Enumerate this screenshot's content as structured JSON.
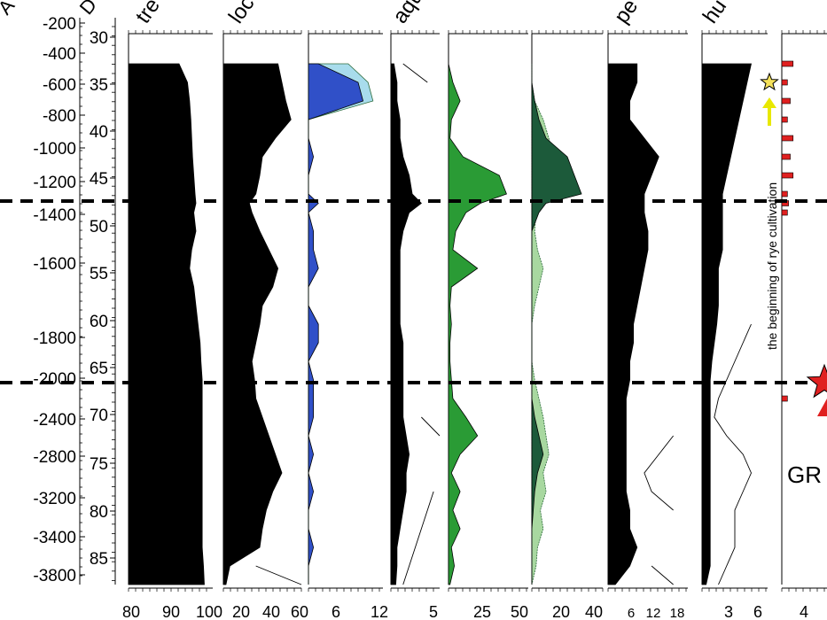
{
  "chart_data": {
    "type": "area",
    "orientation": "vertical-depth",
    "age_axis": {
      "ticks": [
        -200,
        -400,
        -600,
        -800,
        -1000,
        -1200,
        -1400,
        -1600,
        -1800,
        -2000,
        -2400,
        -2800,
        -3200,
        -3400,
        -3800
      ],
      "label": "A"
    },
    "depth_axis": {
      "ticks": [
        30,
        35,
        40,
        45,
        50,
        55,
        60,
        65,
        70,
        75,
        80,
        85
      ],
      "label": "D",
      "range": [
        28,
        88
      ]
    },
    "depths": [
      32,
      34,
      36,
      38,
      40,
      42,
      44,
      46,
      47,
      48,
      50,
      52,
      54,
      56,
      58,
      60,
      62,
      64,
      66,
      68,
      70,
      72,
      74,
      76,
      78,
      80,
      82,
      84,
      86,
      88
    ],
    "panels": [
      {
        "header": "tre",
        "x_ticks": [
          "80",
          "90",
          "100"
        ],
        "xlim": [
          80,
          100
        ],
        "color": "#000000",
        "values": [
          92,
          94,
          94.5,
          94.8,
          95,
          95.2,
          95.5,
          95.8,
          96,
          95.5,
          96,
          95,
          94.5,
          95.5,
          96,
          96.5,
          97,
          97.2,
          97.5,
          97.5,
          97.5,
          97.5,
          97.5,
          97.5,
          97.5,
          97.5,
          97.5,
          97.5,
          97.8,
          98
        ]
      },
      {
        "header": "loc",
        "x_ticks": [
          "20",
          "40",
          "60"
        ],
        "xlim": [
          0,
          60
        ],
        "color": "#000000",
        "values": [
          42,
          45,
          48,
          52,
          40,
          30,
          28,
          25,
          20,
          22,
          28,
          35,
          42,
          38,
          30,
          28,
          25,
          22,
          24,
          25,
          30,
          35,
          40,
          45,
          38,
          33,
          30,
          28,
          5,
          2
        ],
        "exag": [
          0,
          0,
          0,
          0,
          0,
          0,
          0,
          0,
          0,
          0,
          0,
          0,
          0,
          0,
          0,
          0,
          0,
          0,
          0,
          0,
          0,
          0,
          0,
          0,
          0,
          0,
          0,
          0,
          25,
          60
        ]
      },
      {
        "header": "",
        "x_ticks": [
          "6",
          "12"
        ],
        "xlim": [
          0,
          15
        ],
        "color": "#3050c8",
        "exag_color": "#a8dcec",
        "values": [
          2,
          10,
          11,
          0,
          0,
          1,
          0,
          0,
          2,
          0,
          1,
          1,
          2,
          0,
          0,
          2,
          2,
          0,
          1,
          1,
          1,
          0,
          1,
          0,
          1,
          0,
          0,
          1,
          0,
          0
        ],
        "exag": [
          8,
          12,
          13,
          0,
          0,
          0,
          0,
          0,
          0,
          0,
          0,
          0,
          0,
          0,
          0,
          0,
          0,
          0,
          0,
          0,
          0,
          0,
          0,
          0,
          0,
          0,
          0,
          0,
          0,
          0
        ]
      },
      {
        "header": "aqu",
        "x_ticks": [
          "5"
        ],
        "xlim": [
          0,
          8
        ],
        "color": "#000000",
        "values": [
          0.5,
          1,
          1,
          1.5,
          1.5,
          2,
          3,
          3.5,
          5,
          3,
          2,
          1.5,
          1.5,
          1.5,
          1.5,
          1.5,
          2,
          2,
          2,
          2,
          2,
          2.5,
          3,
          2.5,
          2.5,
          2,
          1.5,
          1,
          1,
          0.8
        ],
        "exag": [
          2,
          6,
          0,
          0,
          0,
          0,
          0,
          0,
          0,
          0,
          0,
          0,
          0,
          0,
          0,
          0,
          0,
          0,
          0,
          0,
          5,
          8,
          0,
          0,
          7,
          6,
          5,
          4,
          3,
          2
        ]
      },
      {
        "header": "",
        "x_ticks": [
          "25",
          "50"
        ],
        "xlim": [
          0,
          55
        ],
        "color": "#2a9b35",
        "values": [
          0,
          3,
          8,
          2,
          1,
          10,
          35,
          40,
          22,
          12,
          5,
          3,
          20,
          2,
          1,
          2,
          1,
          1,
          2,
          3,
          12,
          20,
          8,
          2,
          8,
          3,
          8,
          2,
          4,
          1
        ]
      },
      {
        "header": "",
        "x_ticks": [
          "20",
          "40"
        ],
        "xlim": [
          0,
          50
        ],
        "color": "#1c5a3a",
        "exag_color": "#a8d8a0",
        "values": [
          0,
          0,
          2,
          5,
          10,
          25,
          30,
          35,
          10,
          5,
          0,
          0,
          0,
          0,
          0,
          0,
          0,
          0,
          0,
          0,
          2,
          5,
          8,
          4,
          2,
          1,
          0,
          0,
          0,
          0
        ],
        "exag": [
          0,
          0,
          2,
          8,
          12,
          15,
          18,
          15,
          5,
          3,
          2,
          4,
          8,
          5,
          2,
          0,
          0,
          0,
          2,
          5,
          8,
          10,
          12,
          8,
          10,
          6,
          8,
          4,
          3,
          0
        ]
      },
      {
        "header": "pe",
        "x_ticks": [
          "6",
          "12",
          "18"
        ],
        "xlim": [
          0,
          22
        ],
        "color": "#000000",
        "values": [
          8,
          8,
          6,
          6,
          10,
          14,
          12,
          10,
          10,
          10,
          11,
          11,
          10,
          9,
          8,
          7,
          7,
          6,
          6,
          5,
          5,
          5,
          5,
          5,
          5,
          6,
          6,
          8,
          6,
          2
        ],
        "exag": [
          0,
          0,
          0,
          0,
          0,
          0,
          0,
          0,
          0,
          0,
          0,
          0,
          0,
          0,
          0,
          0,
          0,
          0,
          0,
          0,
          0,
          18,
          14,
          10,
          12,
          18,
          0,
          0,
          12,
          18
        ]
      },
      {
        "header": "hu",
        "x_ticks": [
          "3",
          "6"
        ],
        "xlim": [
          0,
          8
        ],
        "color": "#000000",
        "values": [
          6,
          5.5,
          5,
          4.5,
          4,
          3.5,
          3,
          2.5,
          2.5,
          2.5,
          2.5,
          2.5,
          2,
          2,
          2,
          1.8,
          1.5,
          1.2,
          1,
          1,
          1,
          1,
          1,
          1,
          1,
          1,
          1,
          1,
          1,
          0.5
        ],
        "exag": [
          0,
          0,
          0,
          0,
          0,
          0,
          0,
          0,
          0,
          0,
          0,
          0,
          0,
          0,
          0,
          6,
          5,
          4,
          3,
          2,
          1.5,
          3,
          5,
          6,
          5,
          4,
          4,
          4,
          3,
          2
        ]
      },
      {
        "header": "",
        "x_ticks": [
          "4"
        ],
        "xlim": [
          0,
          8
        ],
        "color": "#e02020",
        "values": [
          2,
          1,
          1.5,
          1,
          2,
          1.5,
          2,
          1,
          1.2,
          1,
          0,
          0,
          0,
          0,
          0,
          0,
          0,
          0,
          0,
          1,
          0,
          0,
          0,
          0,
          0,
          0,
          0,
          0,
          0,
          0
        ]
      }
    ],
    "annotations": {
      "rye_text": "the beginning of rye cultivation",
      "gr_text": "GR"
    },
    "colors": {
      "black_fill": "#000000",
      "blue_fill": "#3050c8",
      "light_blue": "#a8dcec",
      "green": "#2a9b35",
      "dark_green": "#1c5a3a",
      "light_green": "#a8d8a0",
      "red": "#e02020",
      "star_yellow": "#f5e15a",
      "arrow_yellow": "#e8e800"
    }
  }
}
